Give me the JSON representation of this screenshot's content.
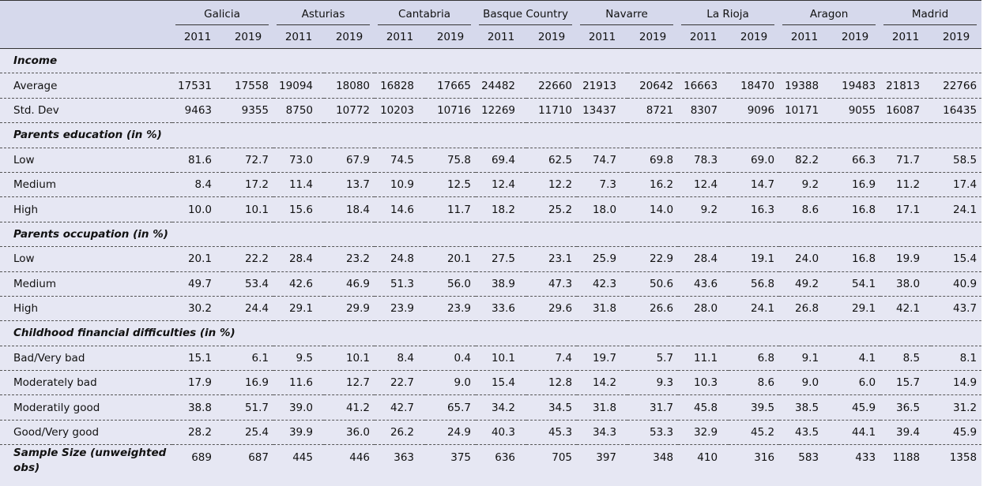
{
  "header": {
    "regions": [
      "Galicia",
      "Asturias",
      "Cantabria",
      "Basque Country",
      "Navarre",
      "La Rioja",
      "Aragon",
      "Madrid"
    ],
    "years": [
      "2011",
      "2019",
      "2011",
      "2019",
      "2011",
      "2019",
      "2011",
      "2019",
      "2011",
      "2019",
      "2011",
      "2019",
      "2011",
      "2019",
      "2011",
      "2019"
    ]
  },
  "sections": [
    {
      "title": "Income",
      "rows": [
        {
          "label": "Average",
          "values": [
            "17531",
            "17558",
            "19094",
            "18080",
            "16828",
            "17665",
            "24482",
            "22660",
            "21913",
            "20642",
            "16663",
            "18470",
            "19388",
            "19483",
            "21813",
            "22766"
          ]
        },
        {
          "label": "Std. Dev",
          "values": [
            "9463",
            "9355",
            "8750",
            "10772",
            "10203",
            "10716",
            "12269",
            "11710",
            "13437",
            "8721",
            "8307",
            "9096",
            "10171",
            "9055",
            "16087",
            "16435"
          ]
        }
      ]
    },
    {
      "title": "Parents education (in %)",
      "rows": [
        {
          "label": "Low",
          "values": [
            "81.6",
            "72.7",
            "73.0",
            "67.9",
            "74.5",
            "75.8",
            "69.4",
            "62.5",
            "74.7",
            "69.8",
            "78.3",
            "69.0",
            "82.2",
            "66.3",
            "71.7",
            "58.5"
          ]
        },
        {
          "label": "Medium",
          "values": [
            "8.4",
            "17.2",
            "11.4",
            "13.7",
            "10.9",
            "12.5",
            "12.4",
            "12.2",
            "7.3",
            "16.2",
            "12.4",
            "14.7",
            "9.2",
            "16.9",
            "11.2",
            "17.4"
          ]
        },
        {
          "label": "High",
          "values": [
            "10.0",
            "10.1",
            "15.6",
            "18.4",
            "14.6",
            "11.7",
            "18.2",
            "25.2",
            "18.0",
            "14.0",
            "9.2",
            "16.3",
            "8.6",
            "16.8",
            "17.1",
            "24.1"
          ]
        }
      ]
    },
    {
      "title": "Parents occupation (in %)",
      "rows": [
        {
          "label": "Low",
          "values": [
            "20.1",
            "22.2",
            "28.4",
            "23.2",
            "24.8",
            "20.1",
            "27.5",
            "23.1",
            "25.9",
            "22.9",
            "28.4",
            "19.1",
            "24.0",
            "16.8",
            "19.9",
            "15.4"
          ]
        },
        {
          "label": "Medium",
          "values": [
            "49.7",
            "53.4",
            "42.6",
            "46.9",
            "51.3",
            "56.0",
            "38.9",
            "47.3",
            "42.3",
            "50.6",
            "43.6",
            "56.8",
            "49.2",
            "54.1",
            "38.0",
            "40.9"
          ]
        },
        {
          "label": "High",
          "values": [
            "30.2",
            "24.4",
            "29.1",
            "29.9",
            "23.9",
            "23.9",
            "33.6",
            "29.6",
            "31.8",
            "26.6",
            "28.0",
            "24.1",
            "26.8",
            "29.1",
            "42.1",
            "43.7"
          ]
        }
      ]
    },
    {
      "title": "Childhood financial difficulties (in %)",
      "rows": [
        {
          "label": "Bad/Very bad",
          "values": [
            "15.1",
            "6.1",
            "9.5",
            "10.1",
            "8.4",
            "0.4",
            "10.1",
            "7.4",
            "19.7",
            "5.7",
            "11.1",
            "6.8",
            "9.1",
            "4.1",
            "8.5",
            "8.1"
          ]
        },
        {
          "label": "Moderately bad",
          "values": [
            "17.9",
            "16.9",
            "11.6",
            "12.7",
            "22.7",
            "9.0",
            "15.4",
            "12.8",
            "14.2",
            "9.3",
            "10.3",
            "8.6",
            "9.0",
            "6.0",
            "15.7",
            "14.9"
          ]
        },
        {
          "label": "Moderatily good",
          "values": [
            "38.8",
            "51.7",
            "39.0",
            "41.2",
            "42.7",
            "65.7",
            "34.2",
            "34.5",
            "31.8",
            "31.7",
            "45.8",
            "39.5",
            "38.5",
            "45.9",
            "36.5",
            "31.2"
          ]
        },
        {
          "label": "Good/Very good",
          "values": [
            "28.2",
            "25.4",
            "39.9",
            "36.0",
            "26.2",
            "24.9",
            "40.3",
            "45.3",
            "34.3",
            "53.3",
            "32.9",
            "45.2",
            "43.5",
            "44.1",
            "39.4",
            "45.9"
          ]
        }
      ]
    }
  ],
  "sample_size": {
    "label": "Sample Size (unweighted obs)",
    "values": [
      "689",
      "687",
      "445",
      "446",
      "363",
      "375",
      "636",
      "705",
      "397",
      "348",
      "410",
      "316",
      "583",
      "433",
      "1188",
      "1358"
    ]
  }
}
